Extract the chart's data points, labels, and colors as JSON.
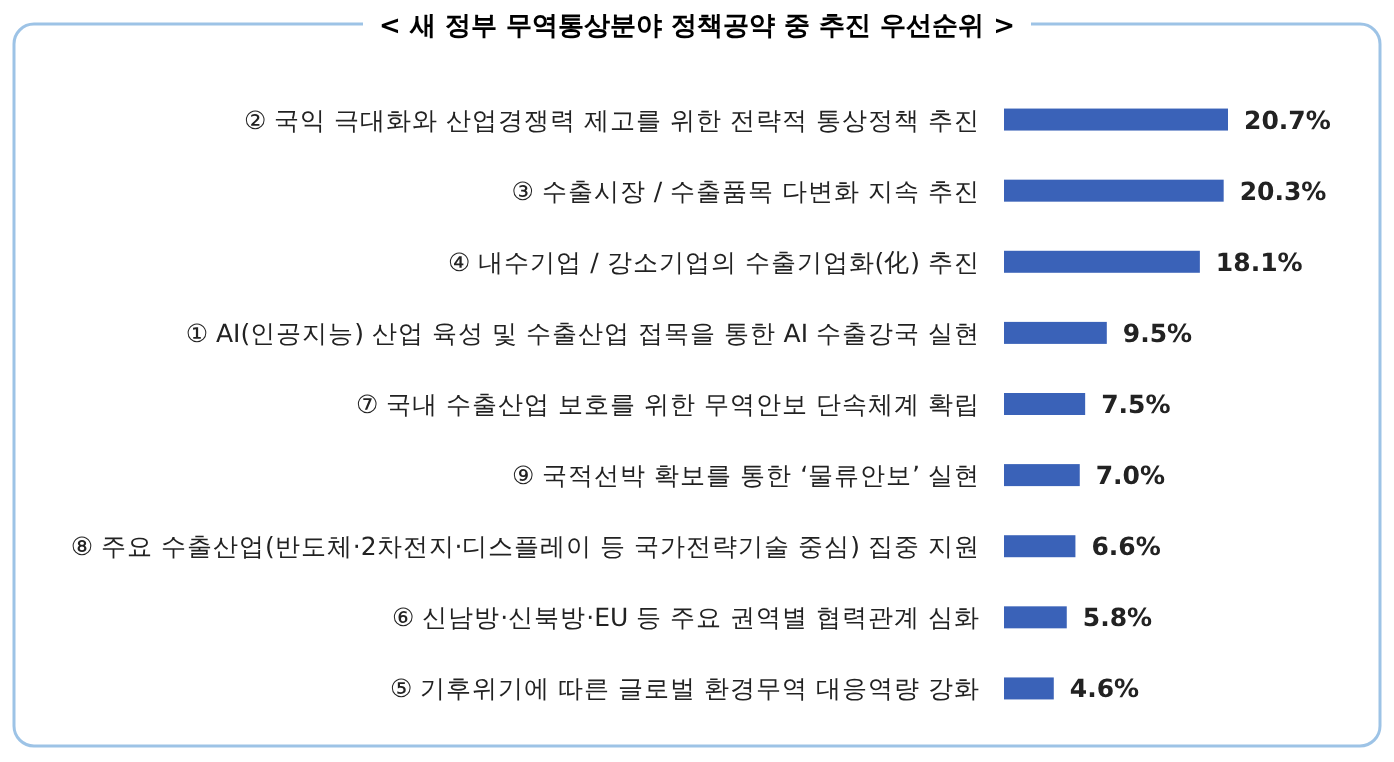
{
  "chart_data": {
    "type": "bar",
    "orientation": "horizontal",
    "title": "< 새 정부 무역통상분야 정책공약 중 추진 우선순위 >",
    "categories": [
      "② 국익 극대화와 산업경쟁력 제고를 위한 전략적 통상정책 추진",
      "③ 수출시장 / 수출품목 다변화 지속 추진",
      "④ 내수기업 / 강소기업의 수출기업화(化) 추진",
      "① AI(인공지능) 산업 육성 및 수출산업 접목을 통한 AI 수출강국 실현",
      "⑦ 국내 수출산업 보호를 위한 무역안보 단속체계 확립",
      "⑨ 국적선박 확보를 통한 ‘물류안보’ 실현",
      "⑧ 주요 수출산업(반도체·2차전지·디스플레이 등 국가전략기술 중심) 집중 지원",
      "⑥ 신남방·신북방·EU 등 주요 권역별 협력관계 심화",
      "⑤ 기후위기에 따른 글로벌 환경무역 대응역량 강화"
    ],
    "values": [
      20.7,
      20.3,
      18.1,
      9.5,
      7.5,
      7.0,
      6.6,
      5.8,
      4.6
    ],
    "value_labels": [
      "20.7%",
      "20.3%",
      "18.1%",
      "9.5%",
      "7.5%",
      "7.0%",
      "6.6%",
      "5.8%",
      "4.6%"
    ],
    "color": "#3a62b8"
  }
}
